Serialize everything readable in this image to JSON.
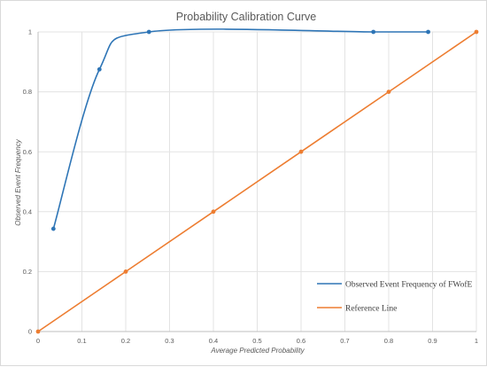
{
  "chart_data": {
    "type": "line",
    "title": "Probability Calibration Curve",
    "xlabel": "Average Predicted Probability",
    "ylabel": "Observed Event Frequency",
    "xlim": [
      0,
      1
    ],
    "ylim": [
      0,
      1
    ],
    "x_ticks": [
      "0",
      "0.1",
      "0.2",
      "0.3",
      "0.4",
      "0.5",
      "0.6",
      "0.7",
      "0.8",
      "0.9",
      "1"
    ],
    "y_ticks": [
      "0",
      "0.2",
      "0.4",
      "0.6",
      "0.8",
      "1"
    ],
    "grid": true,
    "legend_position": "bottom-right",
    "series": [
      {
        "name": "Observed Event Frequency of FWofE",
        "color": "#2e75b6",
        "smooth": true,
        "points": [
          {
            "x": 0.035,
            "y": 0.343
          },
          {
            "x": 0.14,
            "y": 0.875
          },
          {
            "x": 0.253,
            "y": 1.0
          },
          {
            "x": 0.765,
            "y": 1.0
          },
          {
            "x": 0.89,
            "y": 1.0
          }
        ]
      },
      {
        "name": "Reference Line",
        "color": "#ed7d31",
        "smooth": false,
        "points": [
          {
            "x": 0,
            "y": 0
          },
          {
            "x": 0.2,
            "y": 0.2
          },
          {
            "x": 0.4,
            "y": 0.4
          },
          {
            "x": 0.6,
            "y": 0.6
          },
          {
            "x": 0.8,
            "y": 0.8
          },
          {
            "x": 1,
            "y": 1
          }
        ]
      }
    ]
  }
}
